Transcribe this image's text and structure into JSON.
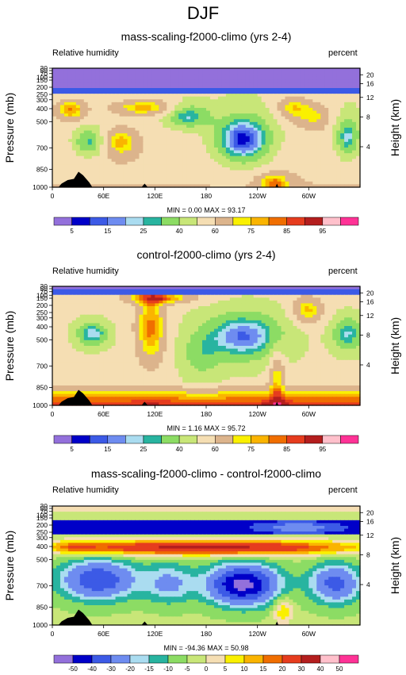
{
  "page": {
    "title": "DJF"
  },
  "chart_data": [
    {
      "type": "heatmap",
      "title": "mass-scaling-f2000-climo (yrs 2-4)",
      "subtitle_left": "Relative humidity",
      "subtitle_right": "percent",
      "ylabel": "Pressure (mb)",
      "y2label": "Height (km)",
      "x_ticks": [
        "0",
        "60E",
        "120E",
        "180",
        "120W",
        "60W"
      ],
      "y_ticks": [
        "30",
        "50",
        "70",
        "100",
        "150",
        "200",
        "250",
        "300",
        "400",
        "500",
        "700",
        "850",
        "1000"
      ],
      "y2_ticks": [
        "20",
        "16",
        "12",
        "8",
        "4"
      ],
      "stats": "MIN =  0.00  MAX = 93.17",
      "colorbar_labels": [
        "5",
        "15",
        "25",
        "40",
        "60",
        "75",
        "85",
        "95"
      ]
    },
    {
      "type": "heatmap",
      "title": "control-f2000-climo (yrs 2-4)",
      "subtitle_left": "Relative humidity",
      "subtitle_right": "percent",
      "ylabel": "Pressure (mb)",
      "y2label": "Height (km)",
      "x_ticks": [
        "0",
        "60E",
        "120E",
        "180",
        "120W",
        "60W"
      ],
      "y_ticks": [
        "30",
        "50",
        "70",
        "100",
        "150",
        "200",
        "250",
        "300",
        "400",
        "500",
        "700",
        "850",
        "1000"
      ],
      "y2_ticks": [
        "20",
        "16",
        "12",
        "8",
        "4"
      ],
      "stats": "MIN =  1.16  MAX = 95.72",
      "colorbar_labels": [
        "5",
        "15",
        "25",
        "40",
        "60",
        "75",
        "85",
        "95"
      ]
    },
    {
      "type": "heatmap",
      "title": "mass-scaling-f2000-climo - control-f2000-climo",
      "subtitle_left": "Relative humidity",
      "subtitle_right": "percent",
      "ylabel": "Pressure (mb)",
      "y2label": "Height (km)",
      "x_ticks": [
        "0",
        "60E",
        "120E",
        "180",
        "120W",
        "60W"
      ],
      "y_ticks": [
        "30",
        "50",
        "70",
        "100",
        "150",
        "200",
        "250",
        "300",
        "400",
        "500",
        "700",
        "850",
        "1000"
      ],
      "y2_ticks": [
        "20",
        "16",
        "12",
        "8",
        "4"
      ],
      "stats": "MIN = -94.36  MAX = 50.98",
      "colorbar_labels": [
        "-50",
        "-40",
        "-30",
        "-20",
        "-15",
        "-10",
        "-5",
        "0",
        "5",
        "10",
        "15",
        "20",
        "30",
        "40",
        "50"
      ]
    }
  ],
  "palettes": {
    "abs": [
      "#9370DB",
      "#0000C8",
      "#3C5AE6",
      "#6E8CF0",
      "#AADCF0",
      "#28B4A0",
      "#8CDC64",
      "#C8E678",
      "#F5DEB3",
      "#DCB48C",
      "#FAF000",
      "#FAB400",
      "#F06E00",
      "#E63C1E",
      "#B41E1E",
      "#FFC0CB",
      "#FF3296"
    ],
    "diff": [
      "#9370DB",
      "#0000C8",
      "#3C5AE6",
      "#6E8CF0",
      "#AADCF0",
      "#28B4A0",
      "#8CDC64",
      "#C8E678",
      "#F5DEB3",
      "#FAF000",
      "#FAB400",
      "#F06E00",
      "#E63C1E",
      "#B41E1E",
      "#FFC0CB",
      "#FF3296"
    ]
  }
}
